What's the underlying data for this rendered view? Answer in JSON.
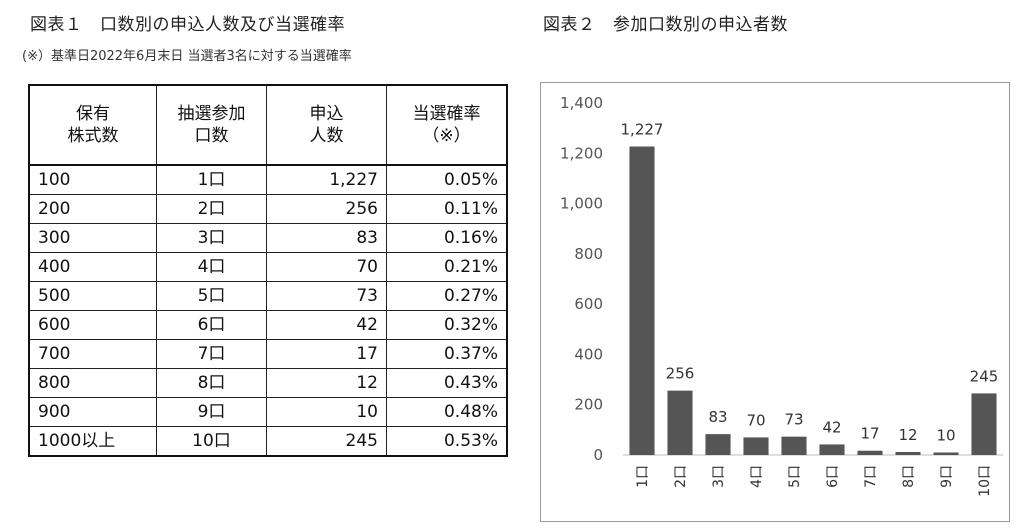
{
  "figure1_title": "図表１　口数別の申込人数及び当選確率",
  "note": "(※）基準日2022年6月末日 当選者3名に対する当選確率",
  "figure2_title": "図表２　参加口数別の申込者数",
  "table": {
    "headers": [
      "保有\n株式数",
      "抽選参加\n口数",
      "申込\n人数",
      "当選確率\n（※）"
    ],
    "rows": [
      [
        "100",
        "1口",
        "1,227",
        "0.05%"
      ],
      [
        "200",
        "2口",
        "256",
        "0.11%"
      ],
      [
        "300",
        "3口",
        "83",
        "0.16%"
      ],
      [
        "400",
        "4口",
        "70",
        "0.21%"
      ],
      [
        "500",
        "5口",
        "73",
        "0.27%"
      ],
      [
        "600",
        "6口",
        "42",
        "0.32%"
      ],
      [
        "700",
        "7口",
        "17",
        "0.37%"
      ],
      [
        "800",
        "8口",
        "12",
        "0.43%"
      ],
      [
        "900",
        "9口",
        "10",
        "0.48%"
      ],
      [
        "1000以上",
        "10口",
        "245",
        "0.53%"
      ]
    ]
  },
  "chart_data": {
    "type": "bar",
    "title": "図表２　参加口数別の申込者数",
    "categories": [
      "1口",
      "2口",
      "3口",
      "4口",
      "5口",
      "6口",
      "7口",
      "8口",
      "9口",
      "10口"
    ],
    "values": [
      1227,
      256,
      83,
      70,
      73,
      42,
      17,
      12,
      10,
      245
    ],
    "data_labels": [
      "1,227",
      "256",
      "83",
      "70",
      "73",
      "42",
      "17",
      "12",
      "10",
      "245"
    ],
    "y_ticks": [
      "0",
      "200",
      "400",
      "600",
      "800",
      "1,000",
      "1,200",
      "1,400"
    ],
    "ylim": [
      0,
      1400
    ],
    "bar_color": "#555555",
    "grid": false,
    "xlabel": "",
    "ylabel": ""
  }
}
